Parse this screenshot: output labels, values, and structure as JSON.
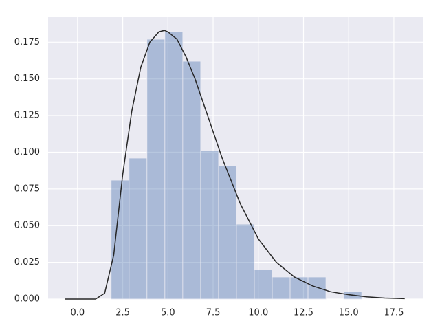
{
  "chart_data": {
    "type": "histogram",
    "bins": [
      1.86,
      2.85,
      3.84,
      4.83,
      5.82,
      6.81,
      7.8,
      8.79,
      9.78,
      10.77,
      11.76,
      12.75,
      13.74,
      14.73,
      15.72
    ],
    "values": [
      0.081,
      0.096,
      0.177,
      0.182,
      0.162,
      0.101,
      0.091,
      0.051,
      0.02,
      0.015,
      0.015,
      0.015,
      0,
      0.005
    ],
    "color": "#4c72b0",
    "curve": {
      "color": "#262626",
      "x": [
        -0.7,
        1.0,
        1.5,
        2.0,
        2.5,
        3.0,
        3.5,
        4.0,
        4.5,
        4.8,
        5.0,
        5.5,
        6.0,
        6.5,
        7.0,
        7.5,
        8.0,
        9.0,
        10.0,
        11.0,
        12.0,
        13.0,
        14.0,
        15.0,
        16.0,
        17.0,
        18.1
      ],
      "y": [
        0,
        0,
        0.004,
        0.03,
        0.085,
        0.128,
        0.158,
        0.175,
        0.182,
        0.183,
        0.182,
        0.177,
        0.165,
        0.15,
        0.132,
        0.114,
        0.096,
        0.065,
        0.041,
        0.025,
        0.015,
        0.009,
        0.005,
        0.003,
        0.0015,
        0.0007,
        0.0003
      ]
    },
    "xlim": [
      -1.63,
      19.1
    ],
    "ylim": [
      0,
      0.192
    ],
    "xticks": [
      {
        "value": 0,
        "label": "0.0"
      },
      {
        "value": 2.5,
        "label": "2.5"
      },
      {
        "value": 5,
        "label": "5.0"
      },
      {
        "value": 7.5,
        "label": "7.5"
      },
      {
        "value": 10,
        "label": "10.0"
      },
      {
        "value": 12.5,
        "label": "12.5"
      },
      {
        "value": 15,
        "label": "15.0"
      },
      {
        "value": 17.5,
        "label": "17.5"
      }
    ],
    "yticks": [
      {
        "value": 0,
        "label": "0.000"
      },
      {
        "value": 0.025,
        "label": "0.025"
      },
      {
        "value": 0.05,
        "label": "0.050"
      },
      {
        "value": 0.075,
        "label": "0.075"
      },
      {
        "value": 0.1,
        "label": "0.100"
      },
      {
        "value": 0.125,
        "label": "0.125"
      },
      {
        "value": 0.15,
        "label": "0.150"
      },
      {
        "value": 0.175,
        "label": "0.175"
      }
    ],
    "grid": true
  }
}
